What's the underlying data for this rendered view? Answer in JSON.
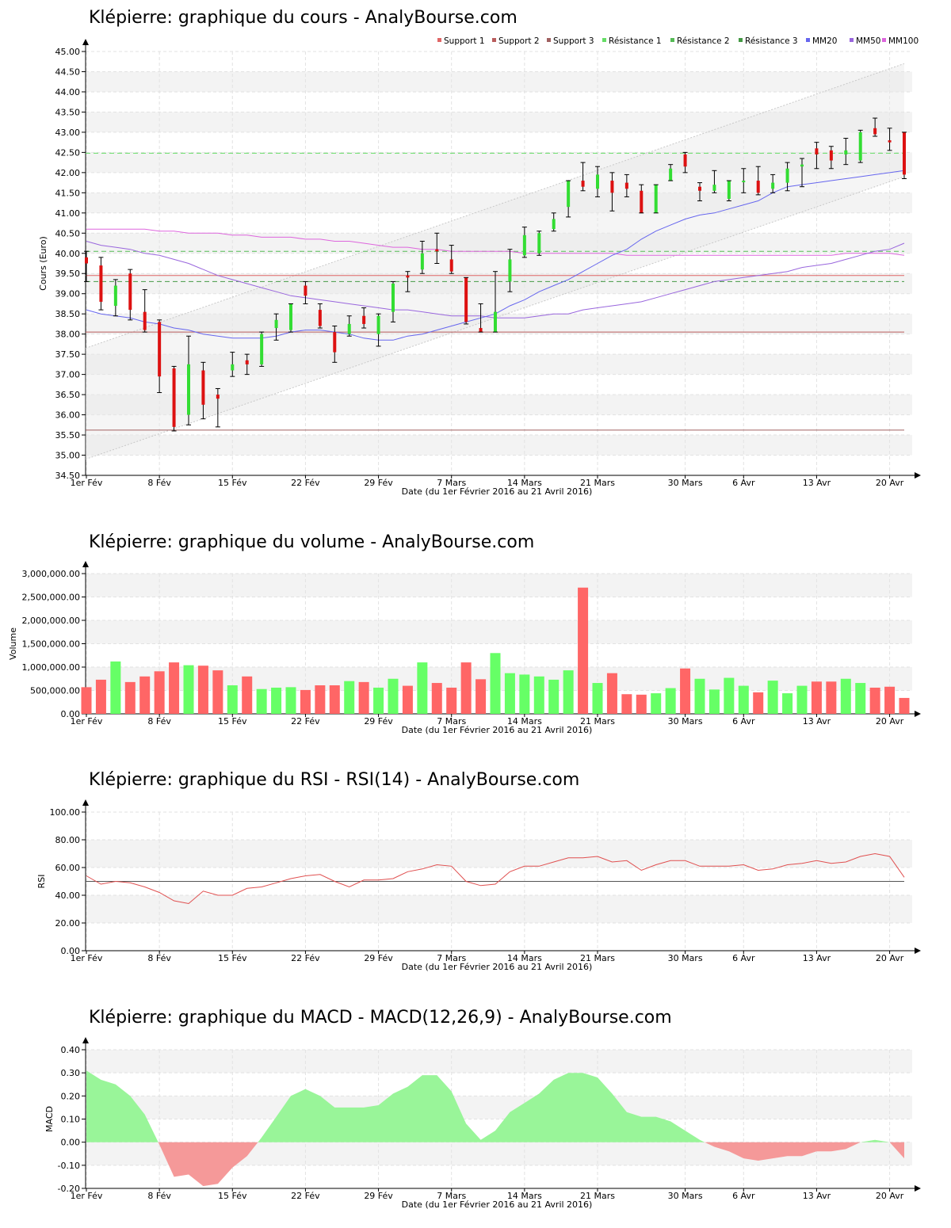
{
  "chart_data": [
    {
      "id": "price",
      "type": "candlestick",
      "title": "Klépierre: graphique du cours - AnalyBourse.com",
      "xlabel": "Date (du 1er Février 2016 au 21 Avril 2016)",
      "ylabel": "Cours (Euro)",
      "ylim": [
        34.5,
        45.0
      ],
      "ytick_step": 0.5,
      "grid": true,
      "x_ticks": [
        "1er Fév",
        "8 Fév",
        "15 Fév",
        "22 Fév",
        "29 Fév",
        "7 Mars",
        "14 Mars",
        "21 Mars",
        "30 Mars",
        "6 Avr",
        "13 Avr",
        "20 Avr"
      ],
      "x_tick_index": [
        0,
        5,
        10,
        15,
        20,
        25,
        30,
        35,
        41,
        45,
        50,
        55
      ],
      "legend_position": "top-right",
      "legend": [
        {
          "label": "Support 1",
          "color": "#e06666"
        },
        {
          "label": "Support 2",
          "color": "#b85c5c"
        },
        {
          "label": "Support 3",
          "color": "#a06060"
        },
        {
          "label": "Résistance 1",
          "color": "#66dd66"
        },
        {
          "label": "Résistance 2",
          "color": "#55bb55"
        },
        {
          "label": "Résistance 3",
          "color": "#449944"
        },
        {
          "label": "MM20",
          "color": "#6666ee"
        },
        {
          "label": "MM50",
          "color": "#9966dd"
        },
        {
          "label": "MM100",
          "color": "#dd66dd"
        }
      ],
      "support_lines": [
        39.45,
        38.05,
        35.62
      ],
      "resistance_lines": [
        42.48,
        40.05,
        39.3
      ],
      "channel_upper": {
        "start": 37.65,
        "end": 44.7
      },
      "channel_lower": {
        "start": 34.9,
        "end": 41.9
      },
      "candles": [
        {
          "o": 39.9,
          "h": 40.05,
          "l": 39.3,
          "c": 39.75
        },
        {
          "o": 39.7,
          "h": 39.9,
          "l": 38.6,
          "c": 38.8
        },
        {
          "o": 38.7,
          "h": 39.35,
          "l": 38.45,
          "c": 39.2
        },
        {
          "o": 39.5,
          "h": 39.6,
          "l": 38.35,
          "c": 38.6
        },
        {
          "o": 38.55,
          "h": 39.1,
          "l": 38.05,
          "c": 38.1
        },
        {
          "o": 38.3,
          "h": 38.35,
          "l": 36.55,
          "c": 36.95
        },
        {
          "o": 37.15,
          "h": 37.2,
          "l": 35.6,
          "c": 35.7
        },
        {
          "o": 36.0,
          "h": 37.95,
          "l": 35.75,
          "c": 37.25
        },
        {
          "o": 37.1,
          "h": 37.3,
          "l": 35.9,
          "c": 36.25
        },
        {
          "o": 36.5,
          "h": 36.65,
          "l": 35.7,
          "c": 36.4
        },
        {
          "o": 37.1,
          "h": 37.55,
          "l": 36.95,
          "c": 37.25
        },
        {
          "o": 37.35,
          "h": 37.5,
          "l": 37.0,
          "c": 37.25
        },
        {
          "o": 37.25,
          "h": 38.05,
          "l": 37.2,
          "c": 38.0
        },
        {
          "o": 38.15,
          "h": 38.5,
          "l": 37.85,
          "c": 38.35
        },
        {
          "o": 38.1,
          "h": 38.75,
          "l": 38.05,
          "c": 38.75
        },
        {
          "o": 39.2,
          "h": 39.3,
          "l": 38.75,
          "c": 38.95
        },
        {
          "o": 38.6,
          "h": 38.75,
          "l": 38.15,
          "c": 38.2
        },
        {
          "o": 38.05,
          "h": 38.2,
          "l": 37.3,
          "c": 37.55
        },
        {
          "o": 38.0,
          "h": 38.45,
          "l": 37.95,
          "c": 38.25
        },
        {
          "o": 38.45,
          "h": 38.65,
          "l": 38.15,
          "c": 38.25
        },
        {
          "o": 38.0,
          "h": 38.5,
          "l": 37.7,
          "c": 38.45
        },
        {
          "o": 38.55,
          "h": 39.3,
          "l": 38.3,
          "c": 39.25
        },
        {
          "o": 39.45,
          "h": 39.55,
          "l": 39.05,
          "c": 39.4
        },
        {
          "o": 39.6,
          "h": 40.3,
          "l": 39.5,
          "c": 40.0
        },
        {
          "o": 40.1,
          "h": 40.5,
          "l": 39.75,
          "c": 40.05
        },
        {
          "o": 39.85,
          "h": 40.2,
          "l": 39.5,
          "c": 39.55
        },
        {
          "o": 39.4,
          "h": 39.4,
          "l": 38.25,
          "c": 38.3
        },
        {
          "o": 38.15,
          "h": 38.75,
          "l": 38.05,
          "c": 38.05
        },
        {
          "o": 38.05,
          "h": 39.55,
          "l": 38.05,
          "c": 38.55
        },
        {
          "o": 39.3,
          "h": 40.1,
          "l": 39.05,
          "c": 39.85
        },
        {
          "o": 39.95,
          "h": 40.65,
          "l": 39.9,
          "c": 40.45
        },
        {
          "o": 40.0,
          "h": 40.55,
          "l": 39.95,
          "c": 40.5
        },
        {
          "o": 40.6,
          "h": 41.0,
          "l": 40.55,
          "c": 40.85
        },
        {
          "o": 41.15,
          "h": 41.8,
          "l": 40.9,
          "c": 41.8
        },
        {
          "o": 41.8,
          "h": 42.25,
          "l": 41.55,
          "c": 41.65
        },
        {
          "o": 41.6,
          "h": 42.15,
          "l": 41.4,
          "c": 41.95
        },
        {
          "o": 41.8,
          "h": 42.0,
          "l": 41.05,
          "c": 41.5
        },
        {
          "o": 41.75,
          "h": 41.95,
          "l": 41.4,
          "c": 41.6
        },
        {
          "o": 41.55,
          "h": 41.7,
          "l": 41.0,
          "c": 41.0
        },
        {
          "o": 41.0,
          "h": 41.7,
          "l": 41.0,
          "c": 41.7
        },
        {
          "o": 41.8,
          "h": 42.2,
          "l": 41.8,
          "c": 42.1
        },
        {
          "o": 42.45,
          "h": 42.5,
          "l": 42.0,
          "c": 42.15
        },
        {
          "o": 41.65,
          "h": 41.75,
          "l": 41.3,
          "c": 41.55
        },
        {
          "o": 41.55,
          "h": 42.05,
          "l": 41.5,
          "c": 41.7
        },
        {
          "o": 41.35,
          "h": 41.8,
          "l": 41.3,
          "c": 41.8
        },
        {
          "o": 41.8,
          "h": 42.1,
          "l": 41.5,
          "c": 41.8
        },
        {
          "o": 41.8,
          "h": 42.15,
          "l": 41.45,
          "c": 41.5
        },
        {
          "o": 41.6,
          "h": 41.95,
          "l": 41.5,
          "c": 41.75
        },
        {
          "o": 41.75,
          "h": 42.25,
          "l": 41.55,
          "c": 42.1
        },
        {
          "o": 42.15,
          "h": 42.35,
          "l": 41.65,
          "c": 42.2
        },
        {
          "o": 42.6,
          "h": 42.75,
          "l": 42.1,
          "c": 42.45
        },
        {
          "o": 42.55,
          "h": 42.65,
          "l": 42.1,
          "c": 42.3
        },
        {
          "o": 42.45,
          "h": 42.85,
          "l": 42.2,
          "c": 42.55
        },
        {
          "o": 42.3,
          "h": 43.05,
          "l": 42.25,
          "c": 43.0
        },
        {
          "o": 43.1,
          "h": 43.35,
          "l": 42.9,
          "c": 42.95
        },
        {
          "o": 42.8,
          "h": 43.1,
          "l": 42.55,
          "c": 42.75
        },
        {
          "o": 43.0,
          "h": 43.0,
          "l": 41.85,
          "c": 41.95
        }
      ],
      "mm20": [
        38.6,
        38.5,
        38.45,
        38.4,
        38.3,
        38.25,
        38.15,
        38.1,
        38.0,
        37.95,
        37.9,
        37.9,
        37.9,
        37.95,
        38.05,
        38.1,
        38.1,
        38.05,
        38.0,
        37.9,
        37.85,
        37.85,
        37.95,
        38.0,
        38.1,
        38.2,
        38.3,
        38.4,
        38.5,
        38.7,
        38.85,
        39.05,
        39.2,
        39.35,
        39.55,
        39.75,
        39.95,
        40.1,
        40.35,
        40.55,
        40.7,
        40.85,
        40.95,
        41.0,
        41.1,
        41.2,
        41.3,
        41.5,
        41.65,
        41.7,
        41.75,
        41.8,
        41.85,
        41.9,
        41.95,
        42.0,
        42.05
      ],
      "mm50": [
        40.3,
        40.2,
        40.15,
        40.1,
        40.0,
        39.95,
        39.85,
        39.75,
        39.6,
        39.45,
        39.35,
        39.25,
        39.15,
        39.05,
        38.95,
        38.9,
        38.85,
        38.8,
        38.75,
        38.7,
        38.65,
        38.6,
        38.6,
        38.55,
        38.5,
        38.45,
        38.45,
        38.45,
        38.4,
        38.4,
        38.4,
        38.45,
        38.5,
        38.5,
        38.6,
        38.65,
        38.7,
        38.75,
        38.8,
        38.9,
        39.0,
        39.1,
        39.2,
        39.3,
        39.35,
        39.4,
        39.45,
        39.5,
        39.55,
        39.65,
        39.7,
        39.75,
        39.85,
        39.95,
        40.05,
        40.1,
        40.25
      ],
      "mm100": [
        40.6,
        40.6,
        40.6,
        40.6,
        40.6,
        40.55,
        40.55,
        40.5,
        40.5,
        40.5,
        40.45,
        40.45,
        40.4,
        40.4,
        40.4,
        40.35,
        40.35,
        40.3,
        40.3,
        40.25,
        40.2,
        40.15,
        40.15,
        40.1,
        40.1,
        40.05,
        40.05,
        40.05,
        40.05,
        40.05,
        40.0,
        40.0,
        40.0,
        40.0,
        40.0,
        40.0,
        40.0,
        39.95,
        39.95,
        39.95,
        39.95,
        39.95,
        39.95,
        39.95,
        39.95,
        39.95,
        39.95,
        39.95,
        39.95,
        39.95,
        39.95,
        39.95,
        40.0,
        40.0,
        40.0,
        40.0,
        39.95
      ]
    },
    {
      "id": "volume",
      "type": "bar",
      "title": "Klépierre: graphique du volume - AnalyBourse.com",
      "xlabel": "Date (du 1er Février 2016 au 21 Avril 2016)",
      "ylabel": "Volume",
      "ylim": [
        0,
        3000000
      ],
      "ytick_step": 500000,
      "y_tick_labels": [
        "0.00",
        "500,000.00",
        "1,000,000.00",
        "1,500,000.00",
        "2,000,000.00",
        "2,500,000.00",
        "3,000,000.00"
      ],
      "grid": true,
      "x_ticks": [
        "1er Fév",
        "8 Fév",
        "15 Fév",
        "22 Fév",
        "29 Fév",
        "7 Mars",
        "14 Mars",
        "21 Mars",
        "30 Mars",
        "6 Avr",
        "13 Avr",
        "20 Avr"
      ],
      "x_tick_index": [
        0,
        5,
        10,
        15,
        20,
        25,
        30,
        35,
        41,
        45,
        50,
        55
      ],
      "values": [
        570000,
        730000,
        1120000,
        680000,
        800000,
        910000,
        1100000,
        1040000,
        1030000,
        930000,
        610000,
        800000,
        530000,
        560000,
        570000,
        510000,
        610000,
        610000,
        700000,
        680000,
        560000,
        750000,
        600000,
        1100000,
        660000,
        560000,
        1100000,
        740000,
        1300000,
        870000,
        840000,
        800000,
        730000,
        930000,
        2700000,
        660000,
        870000,
        420000,
        410000,
        440000,
        550000,
        970000,
        750000,
        520000,
        770000,
        600000,
        460000,
        710000,
        440000,
        600000,
        690000,
        690000,
        750000,
        660000,
        560000,
        580000,
        340000
      ],
      "colors": [
        "red",
        "red",
        "green",
        "red",
        "red",
        "red",
        "red",
        "green",
        "red",
        "red",
        "green",
        "red",
        "green",
        "green",
        "green",
        "red",
        "red",
        "red",
        "green",
        "red",
        "green",
        "green",
        "red",
        "green",
        "red",
        "red",
        "red",
        "red",
        "green",
        "green",
        "green",
        "green",
        "green",
        "green",
        "red",
        "green",
        "red",
        "red",
        "red",
        "green",
        "green",
        "red",
        "green",
        "green",
        "green",
        "green",
        "red",
        "green",
        "green",
        "green",
        "red",
        "red",
        "green",
        "green",
        "red",
        "red",
        "red"
      ]
    },
    {
      "id": "rsi",
      "type": "line",
      "title": "Klépierre: graphique du RSI - RSI(14) - AnalyBourse.com",
      "xlabel": "Date (du 1er Février 2016 au 21 Avril 2016)",
      "ylabel": "RSI",
      "ylim": [
        0,
        100
      ],
      "ytick_step": 20,
      "reference_line": 50,
      "grid": true,
      "x_ticks": [
        "1er Fév",
        "8 Fév",
        "15 Fév",
        "22 Fév",
        "29 Fév",
        "7 Mars",
        "14 Mars",
        "21 Mars",
        "30 Mars",
        "6 Avr",
        "13 Avr",
        "20 Avr"
      ],
      "x_tick_index": [
        0,
        5,
        10,
        15,
        20,
        25,
        30,
        35,
        41,
        45,
        50,
        55
      ],
      "values": [
        54,
        48,
        50,
        49,
        46,
        42,
        36,
        34,
        43,
        40,
        40,
        45,
        46,
        49,
        52,
        54,
        55,
        50,
        46,
        51,
        51,
        52,
        57,
        59,
        62,
        61,
        50,
        47,
        48,
        57,
        61,
        61,
        64,
        67,
        67,
        68,
        64,
        65,
        58,
        62,
        65,
        65,
        61,
        61,
        61,
        62,
        58,
        59,
        62,
        63,
        65,
        63,
        64,
        68,
        70,
        68,
        53
      ],
      "color": "#e05050"
    },
    {
      "id": "macd",
      "type": "area",
      "title": "Klépierre: graphique du MACD - MACD(12,26,9) - AnalyBourse.com",
      "xlabel": "Date (du 1er Février 2016 au 21 Avril 2016)",
      "ylabel": "MACD",
      "ylim": [
        -0.2,
        0.4
      ],
      "ytick_step": 0.1,
      "grid": true,
      "x_ticks": [
        "1er Fév",
        "8 Fév",
        "15 Fév",
        "22 Fév",
        "29 Fév",
        "7 Mars",
        "14 Mars",
        "21 Mars",
        "30 Mars",
        "6 Avr",
        "13 Avr",
        "20 Avr"
      ],
      "x_tick_index": [
        0,
        5,
        10,
        15,
        20,
        25,
        30,
        35,
        41,
        45,
        50,
        55
      ],
      "values": [
        0.31,
        0.27,
        0.25,
        0.2,
        0.12,
        -0.01,
        -0.15,
        -0.14,
        -0.19,
        -0.18,
        -0.11,
        -0.06,
        0.02,
        0.11,
        0.2,
        0.23,
        0.2,
        0.15,
        0.15,
        0.15,
        0.16,
        0.21,
        0.24,
        0.29,
        0.29,
        0.22,
        0.08,
        0.01,
        0.05,
        0.13,
        0.17,
        0.21,
        0.27,
        0.3,
        0.3,
        0.28,
        0.21,
        0.13,
        0.11,
        0.11,
        0.09,
        0.05,
        0.01,
        -0.02,
        -0.04,
        -0.07,
        -0.08,
        -0.07,
        -0.06,
        -0.06,
        -0.04,
        -0.04,
        -0.03,
        0.0,
        0.01,
        0.0,
        -0.07
      ],
      "positive_color": "#99f599",
      "negative_color": "#f59999"
    }
  ]
}
